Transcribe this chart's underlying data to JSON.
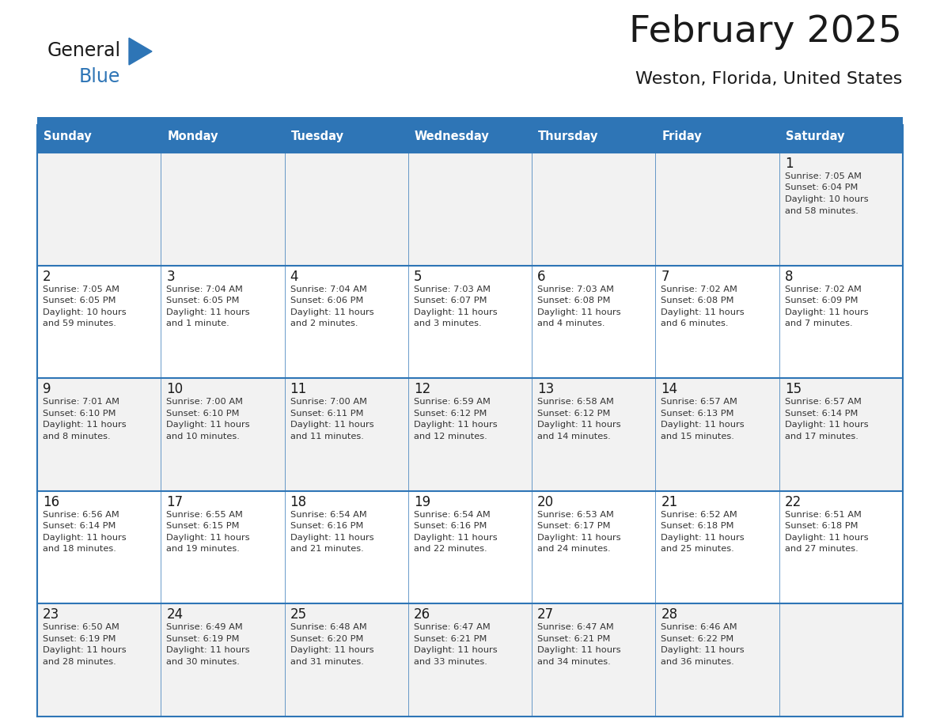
{
  "title": "February 2025",
  "subtitle": "Weston, Florida, United States",
  "header_bg": "#2E75B6",
  "header_text_color": "#FFFFFF",
  "row_bg_light": "#F2F2F2",
  "row_bg_white": "#FFFFFF",
  "separator_color": "#2E75B6",
  "day_headers": [
    "Sunday",
    "Monday",
    "Tuesday",
    "Wednesday",
    "Thursday",
    "Friday",
    "Saturday"
  ],
  "title_color": "#1A1A1A",
  "subtitle_color": "#1A1A1A",
  "day_num_color": "#1A1A1A",
  "cell_text_color": "#333333",
  "logo_black": "#1A1A1A",
  "logo_blue": "#2E75B6",
  "days": [
    [
      null,
      null,
      null,
      null,
      null,
      null,
      {
        "day": "1",
        "sunrise": "7:05 AM",
        "sunset": "6:04 PM",
        "daylight_h": "10 hours",
        "daylight_m": "and 58 minutes."
      }
    ],
    [
      {
        "day": "2",
        "sunrise": "7:05 AM",
        "sunset": "6:05 PM",
        "daylight_h": "10 hours",
        "daylight_m": "and 59 minutes."
      },
      {
        "day": "3",
        "sunrise": "7:04 AM",
        "sunset": "6:05 PM",
        "daylight_h": "11 hours",
        "daylight_m": "and 1 minute."
      },
      {
        "day": "4",
        "sunrise": "7:04 AM",
        "sunset": "6:06 PM",
        "daylight_h": "11 hours",
        "daylight_m": "and 2 minutes."
      },
      {
        "day": "5",
        "sunrise": "7:03 AM",
        "sunset": "6:07 PM",
        "daylight_h": "11 hours",
        "daylight_m": "and 3 minutes."
      },
      {
        "day": "6",
        "sunrise": "7:03 AM",
        "sunset": "6:08 PM",
        "daylight_h": "11 hours",
        "daylight_m": "and 4 minutes."
      },
      {
        "day": "7",
        "sunrise": "7:02 AM",
        "sunset": "6:08 PM",
        "daylight_h": "11 hours",
        "daylight_m": "and 6 minutes."
      },
      {
        "day": "8",
        "sunrise": "7:02 AM",
        "sunset": "6:09 PM",
        "daylight_h": "11 hours",
        "daylight_m": "and 7 minutes."
      }
    ],
    [
      {
        "day": "9",
        "sunrise": "7:01 AM",
        "sunset": "6:10 PM",
        "daylight_h": "11 hours",
        "daylight_m": "and 8 minutes."
      },
      {
        "day": "10",
        "sunrise": "7:00 AM",
        "sunset": "6:10 PM",
        "daylight_h": "11 hours",
        "daylight_m": "and 10 minutes."
      },
      {
        "day": "11",
        "sunrise": "7:00 AM",
        "sunset": "6:11 PM",
        "daylight_h": "11 hours",
        "daylight_m": "and 11 minutes."
      },
      {
        "day": "12",
        "sunrise": "6:59 AM",
        "sunset": "6:12 PM",
        "daylight_h": "11 hours",
        "daylight_m": "and 12 minutes."
      },
      {
        "day": "13",
        "sunrise": "6:58 AM",
        "sunset": "6:12 PM",
        "daylight_h": "11 hours",
        "daylight_m": "and 14 minutes."
      },
      {
        "day": "14",
        "sunrise": "6:57 AM",
        "sunset": "6:13 PM",
        "daylight_h": "11 hours",
        "daylight_m": "and 15 minutes."
      },
      {
        "day": "15",
        "sunrise": "6:57 AM",
        "sunset": "6:14 PM",
        "daylight_h": "11 hours",
        "daylight_m": "and 17 minutes."
      }
    ],
    [
      {
        "day": "16",
        "sunrise": "6:56 AM",
        "sunset": "6:14 PM",
        "daylight_h": "11 hours",
        "daylight_m": "and 18 minutes."
      },
      {
        "day": "17",
        "sunrise": "6:55 AM",
        "sunset": "6:15 PM",
        "daylight_h": "11 hours",
        "daylight_m": "and 19 minutes."
      },
      {
        "day": "18",
        "sunrise": "6:54 AM",
        "sunset": "6:16 PM",
        "daylight_h": "11 hours",
        "daylight_m": "and 21 minutes."
      },
      {
        "day": "19",
        "sunrise": "6:54 AM",
        "sunset": "6:16 PM",
        "daylight_h": "11 hours",
        "daylight_m": "and 22 minutes."
      },
      {
        "day": "20",
        "sunrise": "6:53 AM",
        "sunset": "6:17 PM",
        "daylight_h": "11 hours",
        "daylight_m": "and 24 minutes."
      },
      {
        "day": "21",
        "sunrise": "6:52 AM",
        "sunset": "6:18 PM",
        "daylight_h": "11 hours",
        "daylight_m": "and 25 minutes."
      },
      {
        "day": "22",
        "sunrise": "6:51 AM",
        "sunset": "6:18 PM",
        "daylight_h": "11 hours",
        "daylight_m": "and 27 minutes."
      }
    ],
    [
      {
        "day": "23",
        "sunrise": "6:50 AM",
        "sunset": "6:19 PM",
        "daylight_h": "11 hours",
        "daylight_m": "and 28 minutes."
      },
      {
        "day": "24",
        "sunrise": "6:49 AM",
        "sunset": "6:19 PM",
        "daylight_h": "11 hours",
        "daylight_m": "and 30 minutes."
      },
      {
        "day": "25",
        "sunrise": "6:48 AM",
        "sunset": "6:20 PM",
        "daylight_h": "11 hours",
        "daylight_m": "and 31 minutes."
      },
      {
        "day": "26",
        "sunrise": "6:47 AM",
        "sunset": "6:21 PM",
        "daylight_h": "11 hours",
        "daylight_m": "and 33 minutes."
      },
      {
        "day": "27",
        "sunrise": "6:47 AM",
        "sunset": "6:21 PM",
        "daylight_h": "11 hours",
        "daylight_m": "and 34 minutes."
      },
      {
        "day": "28",
        "sunrise": "6:46 AM",
        "sunset": "6:22 PM",
        "daylight_h": "11 hours",
        "daylight_m": "and 36 minutes."
      },
      null
    ]
  ],
  "fig_width": 11.88,
  "fig_height": 9.18,
  "dpi": 100
}
